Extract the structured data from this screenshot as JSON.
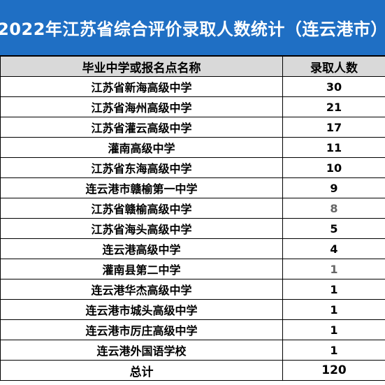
{
  "title": "2022年江苏省综合评价录取人数统计（连云港市）",
  "columns": {
    "school": "毕业中学或报名点名称",
    "count": "录取人数"
  },
  "rows": [
    {
      "school": "江苏省新海高级中学",
      "count": "30",
      "muted": false
    },
    {
      "school": "江苏省海州高级中学",
      "count": "21",
      "muted": false
    },
    {
      "school": "江苏省灌云高级中学",
      "count": "17",
      "muted": false
    },
    {
      "school": "灌南高级中学",
      "count": "11",
      "muted": false
    },
    {
      "school": "江苏省东海高级中学",
      "count": "10",
      "muted": false
    },
    {
      "school": "连云港市赣榆第一中学",
      "count": "9",
      "muted": false
    },
    {
      "school": "江苏省赣榆高级中学",
      "count": "8",
      "muted": true
    },
    {
      "school": "江苏省海头高级中学",
      "count": "5",
      "muted": false
    },
    {
      "school": "连云港高级中学",
      "count": "4",
      "muted": false
    },
    {
      "school": "灌南县第二中学",
      "count": "1",
      "muted": true
    },
    {
      "school": "连云港华杰高级中学",
      "count": "1",
      "muted": false
    },
    {
      "school": "连云港市城头高级中学",
      "count": "1",
      "muted": false
    },
    {
      "school": "连云港市厉庄高级中学",
      "count": "1",
      "muted": false
    },
    {
      "school": "连云港外国语学校",
      "count": "1",
      "muted": false
    }
  ],
  "total": {
    "label": "总计",
    "count": "120"
  },
  "colors": {
    "title_background": "#1f6fc4",
    "title_text": "#ffffff",
    "header_background": "#d9d9d9",
    "muted_value": "#666666"
  }
}
